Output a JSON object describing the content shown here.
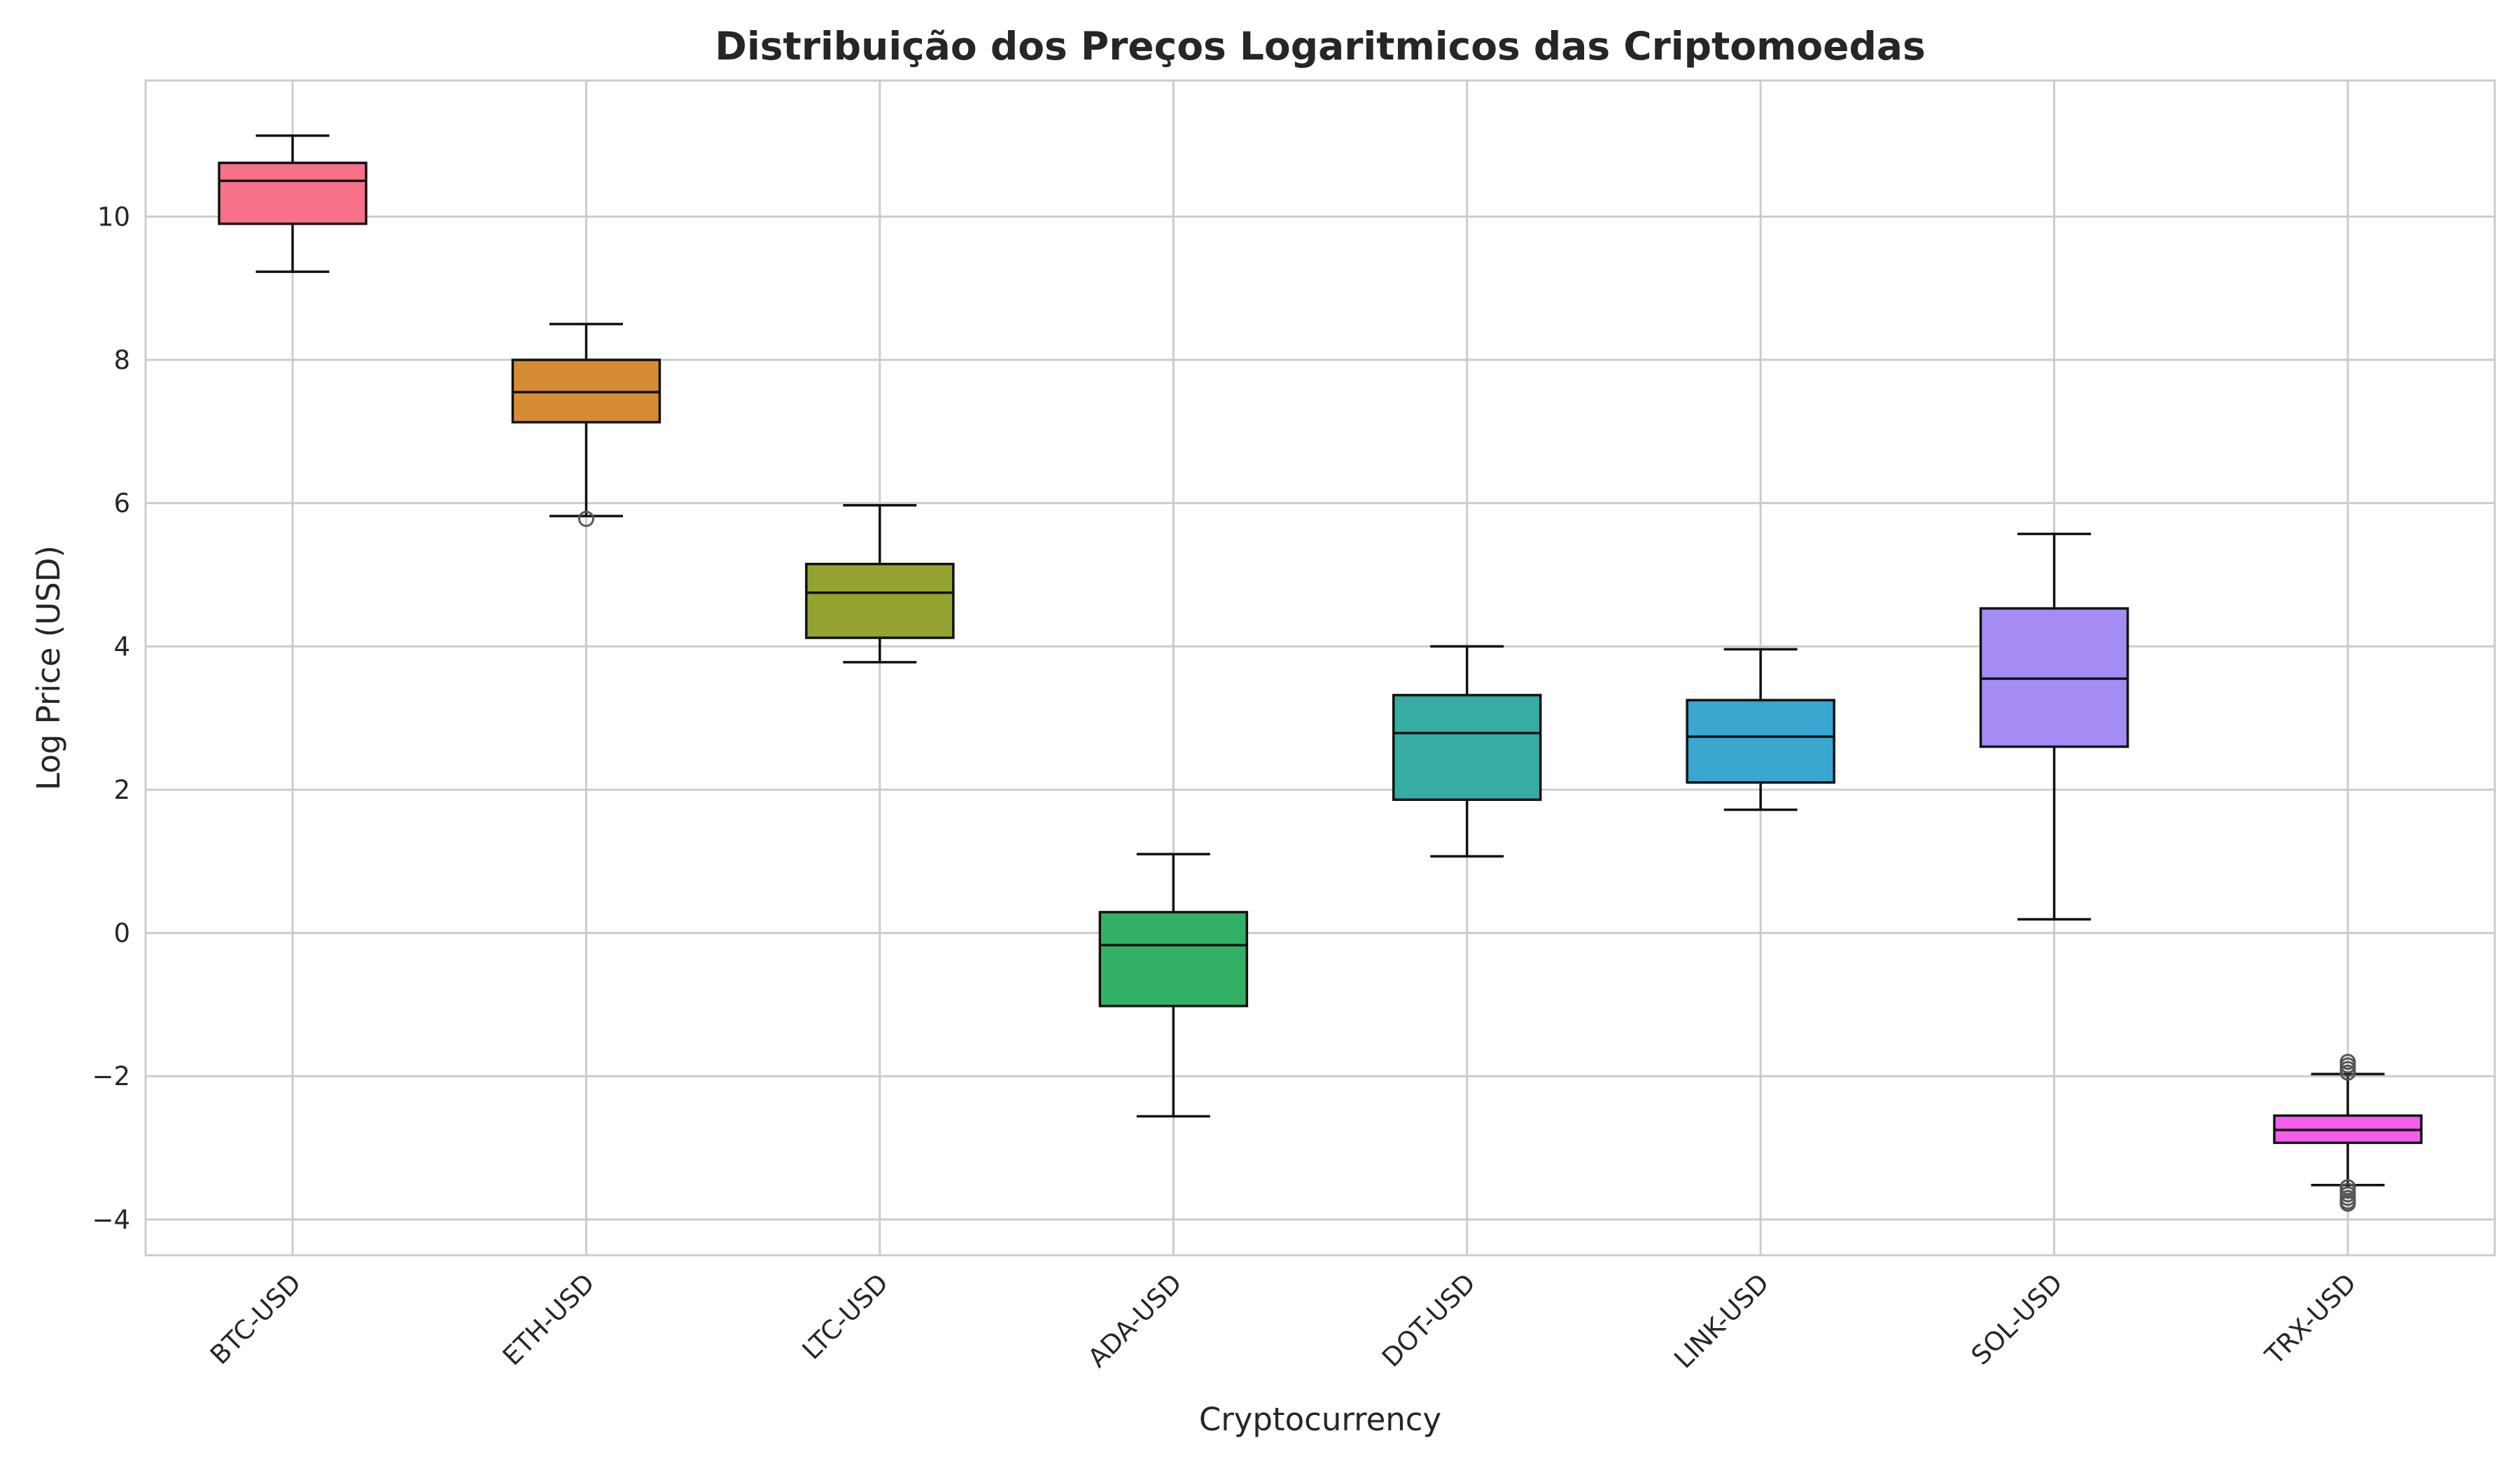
{
  "chart_data": {
    "type": "box",
    "title": "Distribuição dos Preços Logaritmicos das Criptomoedas",
    "xlabel": "Cryptocurrency",
    "ylabel": "Log Price (USD)",
    "ylim": [
      -4.5,
      11.9
    ],
    "yticks": [
      -4,
      -2,
      0,
      2,
      4,
      6,
      8,
      10
    ],
    "grid": true,
    "categories": [
      "BTC-USD",
      "ETH-USD",
      "LTC-USD",
      "ADA-USD",
      "DOT-USD",
      "LINK-USD",
      "SOL-USD",
      "TRX-USD"
    ],
    "boxes": [
      {
        "category": "BTC-USD",
        "whisker_low": 9.23,
        "q1": 9.9,
        "median": 10.5,
        "q3": 10.75,
        "whisker_high": 11.13,
        "outliers": [],
        "color": "#f77189"
      },
      {
        "category": "ETH-USD",
        "whisker_low": 5.82,
        "q1": 7.13,
        "median": 7.55,
        "q3": 8.0,
        "whisker_high": 8.5,
        "outliers": [
          5.78
        ],
        "color": "#d58c32"
      },
      {
        "category": "LTC-USD",
        "whisker_low": 3.78,
        "q1": 4.12,
        "median": 4.75,
        "q3": 5.15,
        "whisker_high": 5.97,
        "outliers": [],
        "color": "#96a331"
      },
      {
        "category": "ADA-USD",
        "whisker_low": -2.56,
        "q1": -1.02,
        "median": -0.17,
        "q3": 0.29,
        "whisker_high": 1.1,
        "outliers": [],
        "color": "#32b166"
      },
      {
        "category": "DOT-USD",
        "whisker_low": 1.07,
        "q1": 1.86,
        "median": 2.79,
        "q3": 3.32,
        "whisker_high": 4.0,
        "outliers": [],
        "color": "#36ada4"
      },
      {
        "category": "LINK-USD",
        "whisker_low": 1.72,
        "q1": 2.1,
        "median": 2.74,
        "q3": 3.25,
        "whisker_high": 3.96,
        "outliers": [],
        "color": "#39a7d0"
      },
      {
        "category": "SOL-USD",
        "whisker_low": 0.19,
        "q1": 2.6,
        "median": 3.55,
        "q3": 4.53,
        "whisker_high": 5.57,
        "outliers": [],
        "color": "#a48cf4"
      },
      {
        "category": "TRX-USD",
        "whisker_low": -3.52,
        "q1": -2.93,
        "median": -2.75,
        "q3": -2.55,
        "whisker_high": -1.97,
        "outliers": [
          -1.8,
          -1.85,
          -1.9,
          -1.95,
          -3.55,
          -3.6,
          -3.65,
          -3.7,
          -3.75,
          -3.78
        ],
        "color": "#f45deb"
      }
    ]
  }
}
